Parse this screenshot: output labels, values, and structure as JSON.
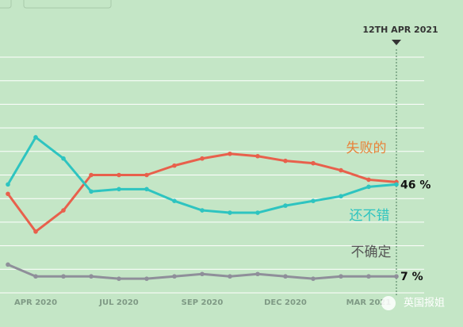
{
  "chart_data": {
    "type": "line",
    "categories": [
      null,
      "APR 2020",
      null,
      null,
      "JUL 2020",
      null,
      null,
      "SEP 2020",
      null,
      null,
      "DEC 2020",
      null,
      null,
      "MAR 2021",
      null
    ],
    "series": [
      {
        "name": "失败的",
        "color": "#e8604c",
        "label_color": "#e8833a",
        "values": [
          42,
          26,
          35,
          50,
          50,
          50,
          54,
          57,
          59,
          58,
          56,
          55,
          52,
          48,
          47
        ],
        "value_labels": [
          null,
          null,
          null,
          null,
          null,
          null,
          null,
          null,
          null,
          null,
          null,
          null,
          null,
          null,
          null
        ]
      },
      {
        "name": "还不错",
        "color": "#2ec4c0",
        "label_color": "#2ec4c0",
        "values": [
          46,
          66,
          57,
          43,
          44,
          44,
          39,
          35,
          34,
          34,
          37,
          39,
          41,
          45,
          46
        ],
        "value_labels": [
          null,
          null,
          null,
          null,
          null,
          null,
          null,
          null,
          null,
          null,
          null,
          null,
          null,
          null,
          "46 %"
        ]
      },
      {
        "name": "不确定",
        "color": "#8f8f9a",
        "label_color": "#555555",
        "values": [
          12,
          7,
          7,
          7,
          6,
          6,
          7,
          8,
          7,
          8,
          7,
          6,
          7,
          7,
          7
        ],
        "value_labels": [
          null,
          null,
          null,
          null,
          null,
          null,
          null,
          null,
          null,
          null,
          null,
          null,
          null,
          null,
          "7 %"
        ]
      }
    ],
    "ylim": [
      0,
      100
    ],
    "yticks": [
      0,
      10,
      20,
      30,
      40,
      50,
      60,
      70,
      80,
      90,
      100
    ],
    "grid": true,
    "annotation": "12TH APR 2021",
    "watermark": "英国报姐"
  }
}
